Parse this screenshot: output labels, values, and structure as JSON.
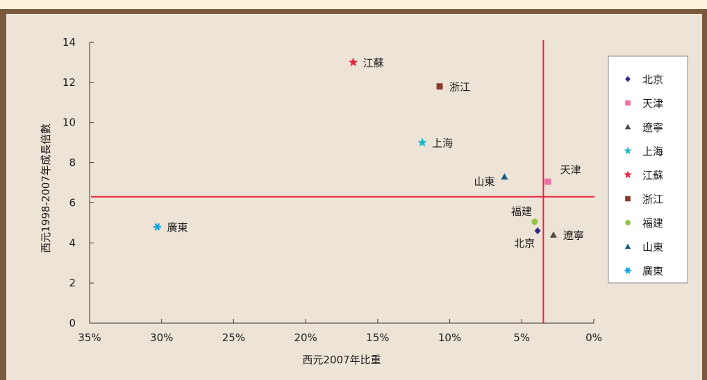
{
  "chart_data": {
    "type": "scatter",
    "xlabel": "西元2007年比重",
    "ylabel": "西元1998-2007年成長倍數",
    "xlim": [
      35,
      0
    ],
    "ylim": [
      0,
      14
    ],
    "x_ticks": [
      {
        "value": 35,
        "label": "35%"
      },
      {
        "value": 30,
        "label": "30%"
      },
      {
        "value": 25,
        "label": "25%"
      },
      {
        "value": 20,
        "label": "20%"
      },
      {
        "value": 15,
        "label": "15%"
      },
      {
        "value": 10,
        "label": "10%"
      },
      {
        "value": 5,
        "label": "5%"
      },
      {
        "value": 0,
        "label": "0%"
      }
    ],
    "y_ticks": [
      {
        "value": 0,
        "label": "0"
      },
      {
        "value": 2,
        "label": "2"
      },
      {
        "value": 4,
        "label": "4"
      },
      {
        "value": 6,
        "label": "6"
      },
      {
        "value": 8,
        "label": "8"
      },
      {
        "value": 10,
        "label": "10"
      },
      {
        "value": 12,
        "label": "12"
      },
      {
        "value": 14,
        "label": "14"
      }
    ],
    "reference_lines": {
      "x": 3.5,
      "y": 6.3,
      "color": "#e8233f"
    },
    "legend_position": "right",
    "grid": false,
    "series": [
      {
        "name": "北京",
        "marker": "diamond",
        "color": "#2d2a82",
        "x": 3.9,
        "y": 4.6,
        "label_anchor": "below-left"
      },
      {
        "name": "天津",
        "marker": "square",
        "color": "#f06fa6",
        "x": 3.2,
        "y": 7.05,
        "label_anchor": "above-right"
      },
      {
        "name": "遼寧",
        "marker": "triangle",
        "color": "#4d4a46",
        "x": 2.8,
        "y": 4.4,
        "label_anchor": "right"
      },
      {
        "name": "上海",
        "marker": "star",
        "color": "#19b6c6",
        "x": 11.9,
        "y": 9.0,
        "label_anchor": "right"
      },
      {
        "name": "江蘇",
        "marker": "star",
        "color": "#e8233f",
        "x": 16.7,
        "y": 13.0,
        "label_anchor": "right"
      },
      {
        "name": "浙江",
        "marker": "square",
        "color": "#8b3a2f",
        "x": 10.7,
        "y": 11.8,
        "label_anchor": "right"
      },
      {
        "name": "福建",
        "marker": "circle",
        "color": "#8dc63f",
        "x": 4.1,
        "y": 5.05,
        "label_anchor": "above-left"
      },
      {
        "name": "山東",
        "marker": "triangle",
        "color": "#1b5e87",
        "x": 6.2,
        "y": 7.3,
        "label_anchor": "left"
      },
      {
        "name": "廣東",
        "marker": "asterisk",
        "color": "#1aa0dc",
        "x": 30.3,
        "y": 4.8,
        "label_anchor": "right"
      }
    ]
  }
}
